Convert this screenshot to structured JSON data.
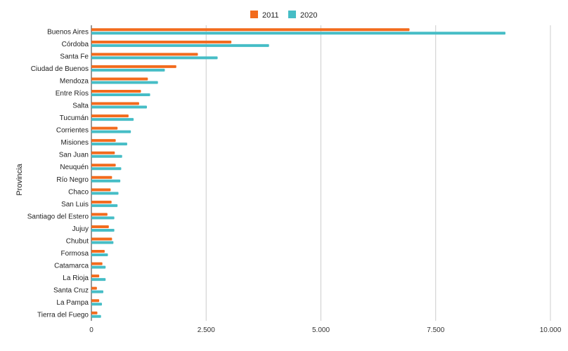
{
  "chart_data": {
    "type": "bar",
    "orientation": "horizontal",
    "title": "",
    "xlabel": "",
    "ylabel": "Provincia",
    "xlim": [
      0,
      10000
    ],
    "x_ticks": [
      0,
      2500,
      5000,
      7500,
      10000
    ],
    "x_tick_labels": [
      "0",
      "2.500",
      "5.000",
      "7.500",
      "10.000"
    ],
    "grid": true,
    "legend_position": "top-center",
    "categories": [
      "Buenos Aires",
      "Córdoba",
      "Santa Fe",
      "Ciudad de Buenos",
      "Mendoza",
      "Entre Ríos",
      "Salta",
      "Tucumán",
      "Corrientes",
      "Misiones",
      "San Juan",
      "Neuquén",
      "Río Negro",
      "Chaco",
      "San Luis",
      "Santiago del Estero",
      "Jujuy",
      "Chubut",
      "Formosa",
      "Catamarca",
      "La Rioja",
      "Santa Cruz",
      "La Pampa",
      "Tierra del Fuego"
    ],
    "series": [
      {
        "name": "2011",
        "color": "#f26b1d",
        "values": [
          6930,
          3050,
          2320,
          1850,
          1230,
          1080,
          1040,
          810,
          570,
          530,
          510,
          530,
          450,
          420,
          440,
          350,
          380,
          450,
          290,
          240,
          170,
          120,
          170,
          130
        ]
      },
      {
        "name": "2020",
        "color": "#46bdc6",
        "values": [
          9020,
          3870,
          2750,
          1600,
          1450,
          1280,
          1210,
          920,
          860,
          780,
          670,
          650,
          630,
          590,
          570,
          500,
          500,
          480,
          360,
          310,
          310,
          260,
          230,
          210
        ]
      }
    ]
  }
}
